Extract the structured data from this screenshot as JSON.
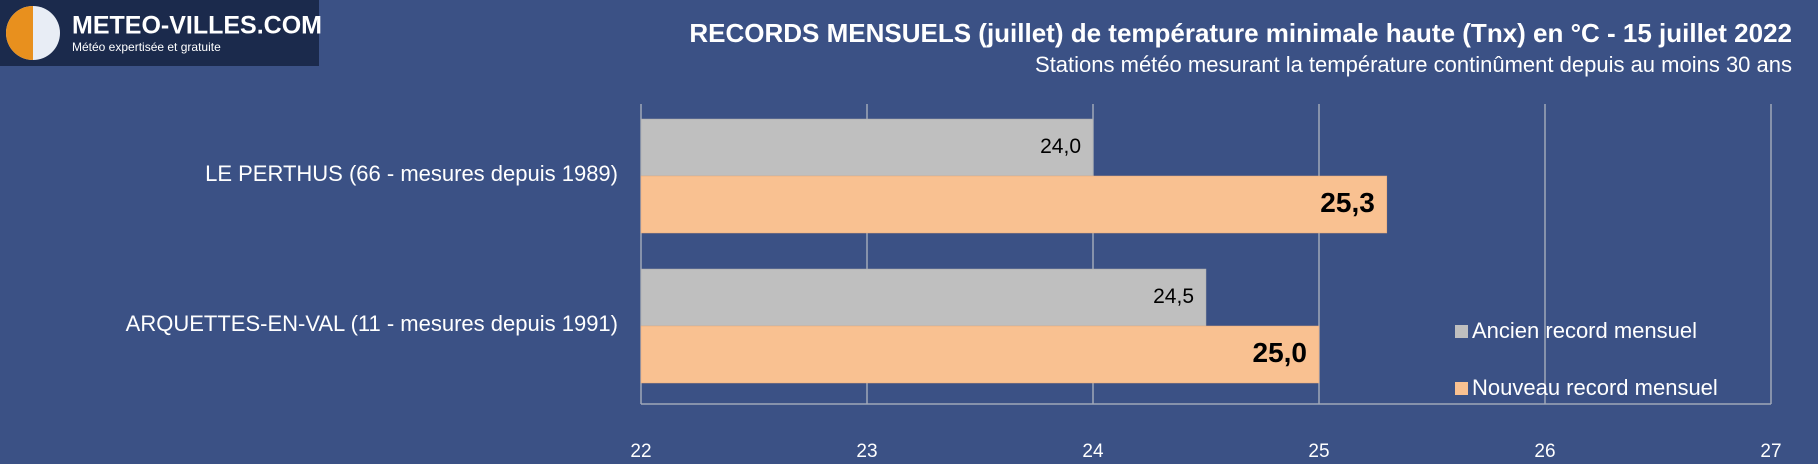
{
  "logo": {
    "name": "METEO-VILLES.COM",
    "tagline": "Météo expertisée et gratuite"
  },
  "chart_data": {
    "type": "hbar",
    "title": "RECORDS MENSUELS (juillet) de température minimale haute (Tnx) en °C - 15 juillet 2022",
    "subtitle": "Stations météo mesurant la température continûment depuis au moins 30 ans",
    "categories": [
      "LE PERTHUS (66 - mesures depuis 1989)",
      "ARQUETTES-EN-VAL (11 - mesures depuis 1991)"
    ],
    "series": [
      {
        "name": "Ancien record mensuel",
        "color": "#bfbfbf",
        "values": [
          24.0,
          24.5
        ],
        "value_labels": [
          "24,0",
          "24,5"
        ]
      },
      {
        "name": "Nouveau record mensuel",
        "color": "#f9c191",
        "values": [
          25.3,
          25.0
        ],
        "value_labels": [
          "25,3",
          "25,0"
        ]
      }
    ],
    "xlim": [
      22,
      27
    ],
    "xticks": [
      22,
      23,
      24,
      25,
      26,
      27
    ],
    "grid": true,
    "legend": "right"
  }
}
